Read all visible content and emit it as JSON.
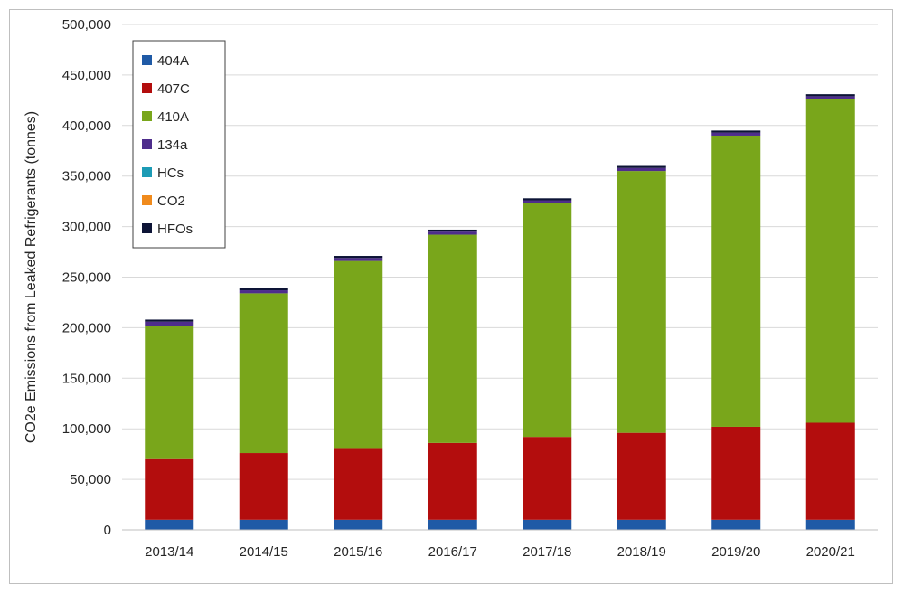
{
  "chart_data": {
    "type": "bar",
    "stacked": true,
    "title": "",
    "xlabel": "",
    "ylabel": "CO2e Emissions from Leaked Refrigerants (tonnes)",
    "ylim": [
      0,
      500000
    ],
    "yticks": [
      "0",
      "50,000",
      "100,000",
      "150,000",
      "200,000",
      "250,000",
      "300,000",
      "350,000",
      "400,000",
      "450,000",
      "500,000"
    ],
    "ytick_values": [
      0,
      50000,
      100000,
      150000,
      200000,
      250000,
      300000,
      350000,
      400000,
      450000,
      500000
    ],
    "grid": true,
    "legend_position": "top-left",
    "categories": [
      "2013/14",
      "2014/15",
      "2015/16",
      "2016/17",
      "2017/18",
      "2018/19",
      "2019/20",
      "2020/21"
    ],
    "series": [
      {
        "name": "404A",
        "color": "#1f5aa6",
        "values": [
          10000,
          10000,
          10000,
          10000,
          10000,
          10000,
          10000,
          10000
        ]
      },
      {
        "name": "407C",
        "color": "#b30d0d",
        "values": [
          60000,
          66000,
          71000,
          76000,
          82000,
          86000,
          92000,
          96000
        ]
      },
      {
        "name": "410A",
        "color": "#79a61b",
        "values": [
          132000,
          158000,
          185000,
          206000,
          231000,
          259000,
          288000,
          320000
        ]
      },
      {
        "name": "134a",
        "color": "#4e2d8c",
        "values": [
          4000,
          3000,
          3000,
          3000,
          3000,
          3000,
          3000,
          3000
        ]
      },
      {
        "name": "HCs",
        "color": "#1c9bb5",
        "values": [
          0,
          0,
          0,
          0,
          0,
          0,
          0,
          0
        ]
      },
      {
        "name": "CO2",
        "color": "#f08a1c",
        "values": [
          0,
          0,
          0,
          0,
          0,
          0,
          0,
          0
        ]
      },
      {
        "name": "HFOs",
        "color": "#0d1436",
        "values": [
          2000,
          2000,
          2000,
          2000,
          2000,
          2000,
          2000,
          2000
        ]
      }
    ]
  }
}
